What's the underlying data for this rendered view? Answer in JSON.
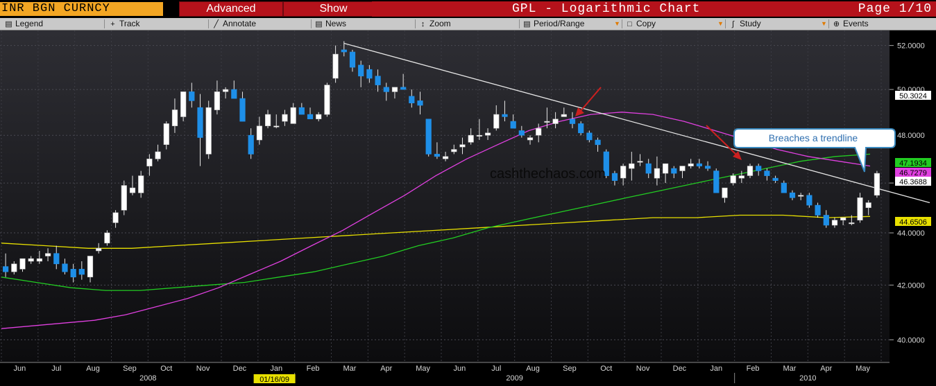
{
  "header": {
    "ticker": "INR BGN CURNCY",
    "advanced_label": "Advanced",
    "show_label": "Show",
    "chart_title": "GPL - Logarithmic Chart",
    "page": "Page 1/10"
  },
  "toolbar": {
    "legend": "Legend",
    "track": "Track",
    "annotate": "Annotate",
    "news": "News",
    "zoom": "Zoom",
    "period_range": "Period/Range",
    "copy": "Copy",
    "study": "Study",
    "events": "Events"
  },
  "colors": {
    "up": "#ffffff",
    "down": "#1e8fe8",
    "ma_short": "#e040e0",
    "ma_mid": "#22cc22",
    "ma_long": "#e8e000",
    "trendline": "#e6e6e6",
    "arrow": "#cc2020"
  },
  "chart_data": {
    "type": "candlestick",
    "scale": "log",
    "ylim": [
      39.2,
      52.7
    ],
    "y_ticks": [
      "52.0000",
      "50.0000",
      "48.0000",
      "46.0000",
      "44.0000",
      "42.0000",
      "40.0000"
    ],
    "x_month_labels": [
      "Jun",
      "Jul",
      "Aug",
      "Sep",
      "Oct",
      "Nov",
      "Dec",
      "Jan",
      "Feb",
      "Mar",
      "Apr",
      "May",
      "Jun",
      "Jul",
      "Aug",
      "Sep",
      "Oct",
      "Nov",
      "Dec",
      "Jan",
      "Feb",
      "Mar",
      "Apr",
      "May"
    ],
    "x_year_labels": [
      "2008",
      "2009",
      "2010"
    ],
    "cursor_date": "01/16/09",
    "watermark": "cashthechaos.com",
    "callout_text": "Breaches a trendline",
    "price_labels": [
      {
        "value": "50.3024",
        "color": "#ffffff"
      },
      {
        "value": "47.1934",
        "color": "#22cc22"
      },
      {
        "value": "46.7279",
        "color": "#e040e0"
      },
      {
        "value": "46.3688",
        "color": "#ffffff"
      },
      {
        "value": "44.6506",
        "color": "#e8e000"
      }
    ],
    "candles": [
      [
        42.7,
        43.2,
        42.3,
        42.5
      ],
      [
        42.5,
        42.9,
        42.4,
        42.8
      ],
      [
        42.6,
        43.0,
        42.5,
        43.0
      ],
      [
        42.9,
        43.1,
        42.8,
        43.0
      ],
      [
        42.9,
        43.3,
        42.8,
        43.0
      ],
      [
        43.1,
        43.4,
        42.9,
        43.2
      ],
      [
        43.2,
        43.5,
        42.6,
        42.8
      ],
      [
        42.8,
        43.0,
        42.4,
        42.5
      ],
      [
        42.6,
        42.8,
        42.1,
        42.3
      ],
      [
        42.6,
        42.9,
        42.2,
        42.4
      ],
      [
        42.3,
        43.1,
        42.1,
        43.1
      ],
      [
        43.3,
        43.6,
        43.2,
        43.4
      ],
      [
        43.6,
        44.1,
        43.5,
        44.0
      ],
      [
        44.4,
        44.9,
        44.2,
        44.8
      ],
      [
        44.9,
        46.1,
        44.7,
        45.9
      ],
      [
        45.6,
        46.3,
        45.5,
        45.8
      ],
      [
        45.6,
        46.5,
        45.4,
        46.3
      ],
      [
        46.7,
        47.2,
        46.3,
        47.0
      ],
      [
        47.0,
        47.6,
        46.9,
        47.3
      ],
      [
        47.6,
        48.6,
        47.4,
        48.5
      ],
      [
        48.4,
        49.6,
        48.1,
        49.1
      ],
      [
        48.8,
        49.9,
        48.6,
        49.9
      ],
      [
        49.9,
        50.3,
        49.2,
        49.5
      ],
      [
        49.2,
        49.8,
        46.7,
        47.9
      ],
      [
        47.2,
        49.5,
        47.0,
        49.2
      ],
      [
        49.1,
        50.4,
        48.9,
        49.9
      ],
      [
        49.9,
        50.1,
        49.6,
        50.0
      ],
      [
        50.0,
        50.4,
        49.7,
        49.6
      ],
      [
        49.6,
        49.9,
        48.6,
        48.6
      ],
      [
        48.0,
        48.3,
        47.0,
        47.2
      ],
      [
        47.8,
        48.8,
        47.6,
        48.4
      ],
      [
        48.4,
        49.1,
        48.3,
        48.9
      ],
      [
        48.4,
        48.9,
        48.3,
        48.4
      ],
      [
        48.6,
        49.1,
        48.4,
        48.9
      ],
      [
        48.5,
        49.4,
        48.6,
        49.2
      ],
      [
        49.2,
        49.4,
        48.9,
        48.9
      ],
      [
        48.9,
        49.2,
        48.7,
        48.7
      ],
      [
        48.7,
        49.0,
        48.6,
        48.9
      ],
      [
        48.9,
        50.3,
        48.8,
        50.2
      ],
      [
        50.5,
        52.0,
        50.3,
        51.6
      ],
      [
        51.8,
        52.2,
        51.5,
        51.7
      ],
      [
        51.7,
        51.8,
        50.8,
        51.0
      ],
      [
        51.1,
        51.3,
        50.1,
        50.6
      ],
      [
        50.9,
        51.1,
        50.3,
        50.5
      ],
      [
        50.6,
        50.9,
        49.9,
        50.2
      ],
      [
        50.1,
        50.3,
        49.5,
        49.9
      ],
      [
        49.9,
        50.1,
        49.6,
        50.1
      ],
      [
        50.1,
        50.7,
        50.0,
        50.0
      ],
      [
        49.7,
        50.0,
        49.2,
        49.4
      ],
      [
        49.5,
        49.9,
        48.9,
        49.3
      ],
      [
        48.7,
        48.7,
        47.1,
        47.2
      ],
      [
        47.2,
        47.7,
        47.0,
        47.1
      ],
      [
        47.0,
        47.3,
        46.9,
        47.1
      ],
      [
        47.3,
        47.6,
        47.2,
        47.4
      ],
      [
        47.5,
        47.9,
        47.2,
        47.6
      ],
      [
        47.7,
        48.3,
        47.6,
        48.0
      ],
      [
        48.0,
        48.7,
        47.8,
        48.0
      ],
      [
        48.0,
        48.3,
        47.8,
        48.1
      ],
      [
        48.3,
        49.3,
        48.2,
        48.9
      ],
      [
        48.9,
        49.5,
        48.6,
        48.8
      ],
      [
        48.6,
        48.9,
        48.3,
        48.3
      ],
      [
        48.2,
        48.4,
        47.9,
        48.0
      ],
      [
        47.8,
        48.0,
        47.6,
        47.9
      ],
      [
        48.0,
        48.5,
        47.7,
        48.3
      ],
      [
        48.6,
        49.2,
        48.3,
        48.6
      ],
      [
        48.5,
        49.0,
        48.3,
        48.7
      ],
      [
        48.8,
        49.2,
        48.8,
        48.9
      ],
      [
        48.7,
        49.0,
        48.3,
        48.5
      ],
      [
        48.5,
        48.6,
        48.0,
        48.1
      ],
      [
        48.1,
        48.2,
        47.7,
        47.8
      ],
      [
        47.8,
        47.9,
        47.3,
        47.6
      ],
      [
        47.3,
        47.4,
        46.2,
        46.3
      ],
      [
        46.4,
        46.5,
        45.9,
        46.1
      ],
      [
        46.2,
        46.8,
        45.9,
        46.7
      ],
      [
        46.6,
        47.3,
        46.1,
        46.8
      ],
      [
        46.9,
        47.2,
        46.7,
        46.9
      ],
      [
        46.8,
        47.0,
        46.2,
        46.4
      ],
      [
        46.2,
        47.1,
        45.9,
        46.6
      ],
      [
        46.4,
        46.7,
        46.0,
        46.8
      ],
      [
        46.6,
        46.7,
        46.2,
        46.4
      ],
      [
        46.5,
        46.7,
        46.2,
        46.7
      ],
      [
        46.7,
        47.0,
        46.6,
        46.8
      ],
      [
        46.8,
        47.0,
        46.6,
        46.7
      ],
      [
        46.7,
        46.9,
        46.5,
        46.6
      ],
      [
        46.5,
        46.6,
        45.6,
        45.6
      ],
      [
        45.4,
        45.8,
        45.2,
        45.8
      ],
      [
        46.0,
        46.4,
        45.9,
        46.3
      ],
      [
        46.2,
        46.5,
        46.0,
        46.3
      ],
      [
        46.3,
        46.8,
        46.2,
        46.7
      ],
      [
        46.7,
        46.8,
        46.3,
        46.5
      ],
      [
        46.5,
        46.6,
        46.1,
        46.3
      ],
      [
        46.2,
        46.3,
        46.0,
        46.1
      ],
      [
        46.0,
        46.1,
        45.6,
        45.6
      ],
      [
        45.6,
        45.7,
        45.3,
        45.4
      ],
      [
        45.5,
        45.6,
        45.3,
        45.5
      ],
      [
        45.5,
        45.6,
        45.0,
        45.1
      ],
      [
        45.1,
        45.2,
        44.6,
        44.7
      ],
      [
        44.7,
        44.9,
        44.2,
        44.3
      ],
      [
        44.3,
        44.6,
        44.2,
        44.5
      ],
      [
        44.5,
        44.6,
        44.3,
        44.6
      ],
      [
        44.4,
        44.7,
        44.3,
        44.4
      ],
      [
        44.5,
        45.6,
        44.4,
        45.4
      ],
      [
        45.0,
        45.3,
        44.7,
        45.2
      ],
      [
        45.5,
        46.5,
        45.4,
        46.4
      ]
    ],
    "ma_short": [
      40.4,
      40.5,
      40.6,
      40.7,
      40.9,
      41.2,
      41.5,
      41.9,
      42.4,
      42.9,
      43.5,
      44.1,
      44.8,
      45.5,
      46.3,
      47.0,
      47.6,
      48.2,
      48.6,
      48.9,
      49.0,
      48.9,
      48.6,
      48.2,
      47.8,
      47.4,
      47.1,
      46.9,
      46.7
    ],
    "ma_mid": [
      42.3,
      42.1,
      41.9,
      41.8,
      41.8,
      41.9,
      42.0,
      42.1,
      42.3,
      42.5,
      42.8,
      43.1,
      43.5,
      43.8,
      44.2,
      44.5,
      44.8,
      45.1,
      45.4,
      45.7,
      46.0,
      46.3,
      46.6,
      46.9,
      47.1,
      47.2
    ],
    "ma_long": [
      43.6,
      43.5,
      43.4,
      43.4,
      43.5,
      43.6,
      43.7,
      43.8,
      43.9,
      44.0,
      44.1,
      44.2,
      44.3,
      44.4,
      44.5,
      44.6,
      44.6,
      44.7,
      44.7,
      44.6,
      44.65
    ],
    "trendline": {
      "from": 52.1,
      "to": 45.2
    }
  }
}
